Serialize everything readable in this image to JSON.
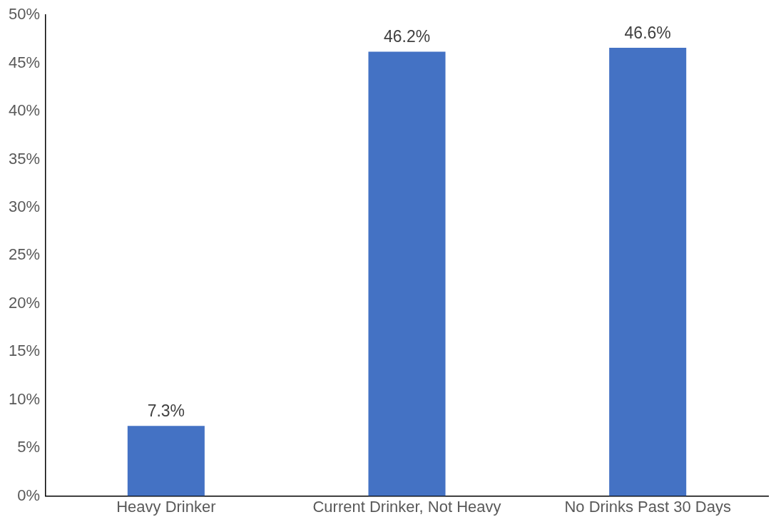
{
  "chart_data": {
    "type": "bar",
    "categories": [
      "Heavy Drinker",
      "Current Drinker, Not Heavy",
      "No Drinks Past 30 Days"
    ],
    "values": [
      7.3,
      46.2,
      46.6
    ],
    "color": "#4472c4",
    "value_labels": [
      "7.3%",
      "46.2%",
      "46.6%"
    ],
    "ylim": [
      0,
      50
    ],
    "yticks": [
      {
        "value": 0,
        "label": "0%"
      },
      {
        "value": 5,
        "label": "5%"
      },
      {
        "value": 10,
        "label": "10%"
      },
      {
        "value": 15,
        "label": "15%"
      },
      {
        "value": 20,
        "label": "20%"
      },
      {
        "value": 25,
        "label": "25%"
      },
      {
        "value": 30,
        "label": "30%"
      },
      {
        "value": 35,
        "label": "35%"
      },
      {
        "value": 40,
        "label": "40%"
      },
      {
        "value": 45,
        "label": "45%"
      },
      {
        "value": 50,
        "label": "50%"
      }
    ],
    "grid": false,
    "legend": false
  }
}
